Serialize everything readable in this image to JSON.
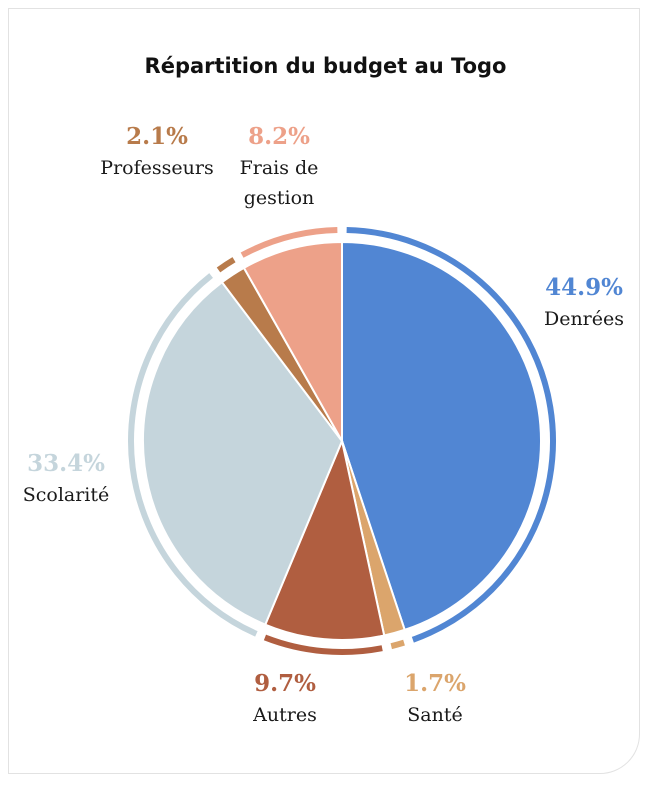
{
  "chart_data": {
    "type": "pie",
    "title": "Répartition du budget au Togo",
    "slices": [
      {
        "name": "Denrées",
        "value": 44.9,
        "label": "44.9%",
        "color": "#5186d3",
        "label_lines": [
          "Denrées"
        ],
        "ring": true
      },
      {
        "name": "Santé",
        "value": 1.7,
        "label": "1.7%",
        "color": "#dba56c",
        "label_lines": [
          "Santé"
        ],
        "ring": true
      },
      {
        "name": "Autres",
        "value": 9.7,
        "label": "9.7%",
        "color": "#b05e40",
        "label_lines": [
          "Autres"
        ],
        "ring": true
      },
      {
        "name": "Scolarité",
        "value": 33.4,
        "label": "33.4%",
        "color": "#c5d5dc",
        "label_lines": [
          "Scolarité"
        ],
        "ring": true
      },
      {
        "name": "Professeurs",
        "value": 2.1,
        "label": "2.1%",
        "color": "#b87b4b",
        "label_lines": [
          "Professeurs"
        ],
        "ring": true
      },
      {
        "name": "Frais de gestion",
        "value": 8.2,
        "label": "8.2%",
        "color": "#eda189",
        "label_lines": [
          "Frais de",
          "gestion"
        ],
        "ring": true
      }
    ]
  }
}
